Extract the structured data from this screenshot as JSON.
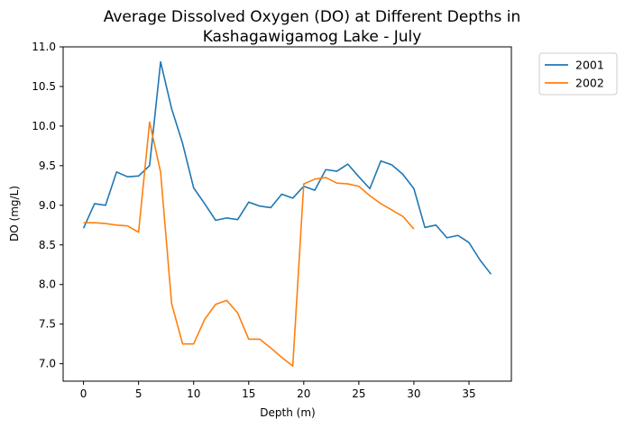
{
  "chart_data": {
    "type": "line",
    "title_lines": [
      "Average Dissolved Oxygen (DO) at Different Depths in",
      "Kashagawigamog Lake - July"
    ],
    "xlabel": "Depth (m)",
    "ylabel": "DO (mg/L)",
    "xlim": [
      -1.85,
      38.85
    ],
    "ylim": [
      6.78,
      11.0
    ],
    "xticks": [
      0,
      5,
      10,
      15,
      20,
      25,
      30,
      35
    ],
    "yticks": [
      7.0,
      7.5,
      8.0,
      8.5,
      9.0,
      9.5,
      10.0,
      10.5,
      11.0
    ],
    "ytick_labels": [
      "7.0",
      "7.5",
      "8.0",
      "8.5",
      "9.0",
      "9.5",
      "10.0",
      "10.5",
      "11.0"
    ],
    "grid": false,
    "legend_position": "outside-top-right",
    "series": [
      {
        "name": "2001",
        "color": "#1f77b4",
        "x": [
          0,
          1,
          2,
          3,
          4,
          5,
          6,
          7,
          8,
          9,
          10,
          11,
          12,
          13,
          14,
          15,
          16,
          17,
          18,
          19,
          20,
          21,
          22,
          23,
          24,
          25,
          26,
          27,
          28,
          29,
          30,
          31,
          32,
          33,
          34,
          35,
          36,
          37
        ],
        "y": [
          8.71,
          9.02,
          9.0,
          9.42,
          9.36,
          9.37,
          9.5,
          10.81,
          10.22,
          9.78,
          9.22,
          9.02,
          8.81,
          8.84,
          8.82,
          9.04,
          8.99,
          8.97,
          9.14,
          9.09,
          9.24,
          9.19,
          9.45,
          9.43,
          9.52,
          9.36,
          9.21,
          9.56,
          9.51,
          9.39,
          9.21,
          8.72,
          8.75,
          8.59,
          8.62,
          8.53,
          8.31,
          8.13
        ]
      },
      {
        "name": "2002",
        "color": "#ff7f0e",
        "x": [
          0,
          1,
          2,
          3,
          4,
          5,
          6,
          7,
          8,
          9,
          10,
          11,
          12,
          13,
          14,
          15,
          16,
          17,
          18,
          19,
          20,
          21,
          22,
          23,
          24,
          25,
          26,
          27,
          28,
          29,
          30
        ],
        "y": [
          8.78,
          8.78,
          8.77,
          8.75,
          8.74,
          8.66,
          10.05,
          9.42,
          7.76,
          7.25,
          7.25,
          7.56,
          7.75,
          7.8,
          7.64,
          7.31,
          7.31,
          7.2,
          7.08,
          6.97,
          9.27,
          9.33,
          9.35,
          9.28,
          9.27,
          9.24,
          9.12,
          9.02,
          8.94,
          8.86,
          8.7
        ]
      }
    ]
  }
}
